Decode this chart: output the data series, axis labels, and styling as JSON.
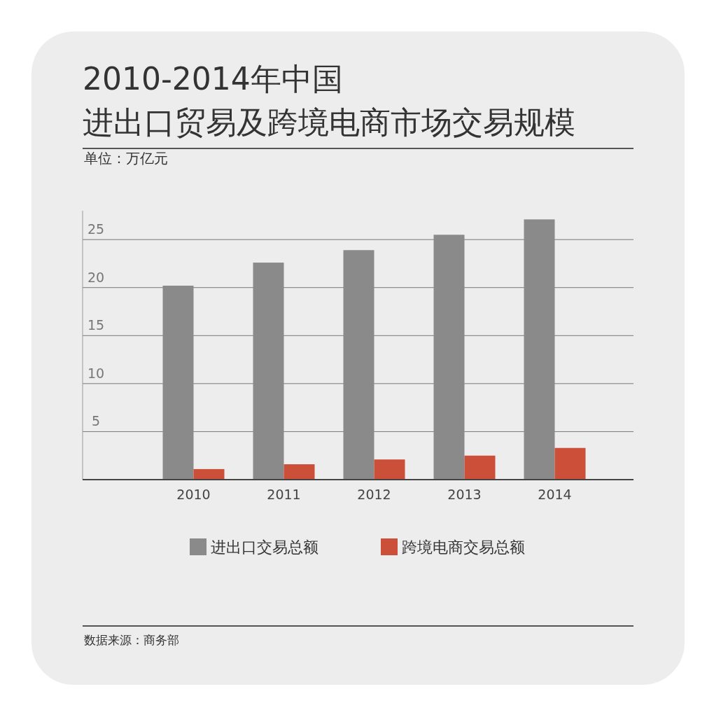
{
  "chart_data": {
    "type": "bar",
    "title": "2010-2014年中国",
    "subtitle": "进出口贸易及跨境电商市场交易规模",
    "ylabel": "单位：万亿元",
    "categories": [
      "2010",
      "2011",
      "2012",
      "2013",
      "2014"
    ],
    "series": [
      {
        "name": "进出口交易总额",
        "color": "#8a8a8a",
        "values": [
          20.2,
          22.6,
          23.9,
          25.5,
          27.1
        ]
      },
      {
        "name": "跨境电商交易总额",
        "color": "#cc4f3a",
        "values": [
          1.1,
          1.6,
          2.1,
          2.5,
          3.3
        ]
      }
    ],
    "ylim": [
      0,
      28
    ],
    "yticks": [
      5,
      10,
      15,
      20,
      25
    ],
    "grid": "y",
    "legend": "bottom",
    "annotations": [
      "数据来源：商务部"
    ]
  }
}
